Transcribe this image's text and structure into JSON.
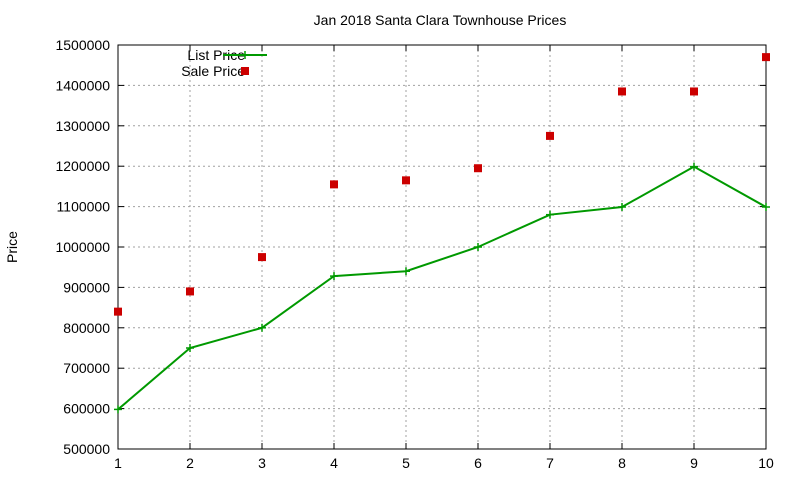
{
  "chart_data": {
    "type": "line",
    "title": "Jan 2018 Santa Clara Townhouse Prices",
    "xlabel": "",
    "ylabel": "Price",
    "xlim": [
      1,
      10
    ],
    "ylim": [
      500000,
      1500000
    ],
    "x_ticks": [
      "1",
      "2",
      "3",
      "4",
      "5",
      "6",
      "7",
      "8",
      "9",
      "10"
    ],
    "y_ticks": [
      "500000",
      "600000",
      "700000",
      "800000",
      "900000",
      "1000000",
      "1100000",
      "1200000",
      "1300000",
      "1400000",
      "1500000"
    ],
    "grid": true,
    "legend_position": "top-left",
    "series": [
      {
        "name": "List Price",
        "style": "linespoints",
        "color": "#009900",
        "marker": "plus",
        "x": [
          1,
          2,
          3,
          4,
          5,
          6,
          7,
          8,
          9,
          10
        ],
        "values": [
          598000,
          750000,
          800000,
          928000,
          940000,
          1000000,
          1080000,
          1099000,
          1199000,
          1099000
        ]
      },
      {
        "name": "Sale Price",
        "style": "points",
        "color": "#cc0000",
        "marker": "square",
        "x": [
          1,
          2,
          3,
          4,
          5,
          6,
          7,
          8,
          9,
          10
        ],
        "values": [
          840000,
          890000,
          975000,
          1155000,
          1165000,
          1195000,
          1275000,
          1385000,
          1385000,
          1470000
        ]
      }
    ]
  }
}
